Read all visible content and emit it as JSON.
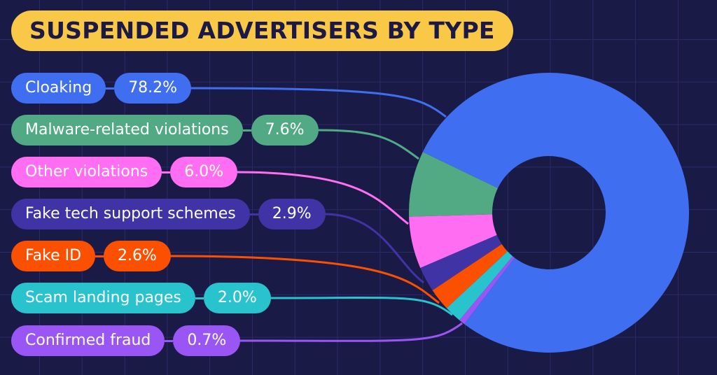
{
  "chart_data": {
    "type": "pie",
    "variant": "donut",
    "title": "SUSPENDED ADVERTISERS BY TYPE",
    "legend_placement": "left",
    "grid": true,
    "background": "#1a1a47",
    "title_background": "#f9c846",
    "slices": [
      {
        "label": "Cloaking",
        "value": 78.2,
        "display": "78.2%",
        "color": "#3f6ff0"
      },
      {
        "label": "Malware-related violations",
        "value": 7.6,
        "display": "7.6%",
        "color": "#52aa85"
      },
      {
        "label": "Other violations",
        "value": 6.0,
        "display": "6.0%",
        "color": "#ff6ef2"
      },
      {
        "label": "Fake tech support schemes",
        "value": 2.9,
        "display": "2.9%",
        "color": "#3f33a6"
      },
      {
        "label": "Fake ID",
        "value": 2.6,
        "display": "2.6%",
        "color": "#fa5000"
      },
      {
        "label": "Scam landing pages",
        "value": 2.0,
        "display": "2.0%",
        "color": "#28c3cc"
      },
      {
        "label": "Confirmed fraud",
        "value": 0.7,
        "display": "0.7%",
        "color": "#9a55f5"
      }
    ]
  }
}
